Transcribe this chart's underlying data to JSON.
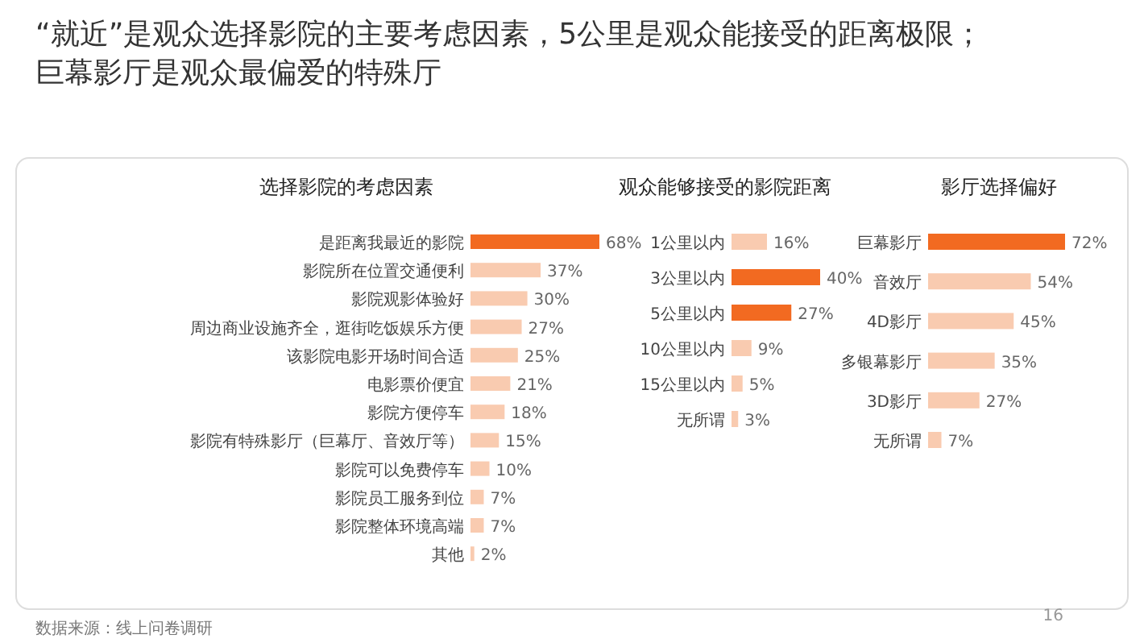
{
  "chart_data": [
    {
      "type": "bar",
      "orientation": "horizontal",
      "title": "“就近”是观众选择影院的主要考虑因素，5公里是观众能接受的距离极限；巨幕影厅是观众最偏爱的特殊厅",
      "subtitle": "选择影院的考虑因素",
      "categories": [
        "是距离我最近的影院",
        "影院所在位置交通便利",
        "影院观影体验好",
        "周边商业设施齐全，逛街吃饭娱乐方便",
        "该影院电影开场时间合适",
        "电影票价便宜",
        "影院方便停车",
        "影院有特殊影厅（巨幕厅、音效厅等）",
        "影院可以免费停车",
        "影院员工服务到位",
        "影院整体环境高端",
        "其他"
      ],
      "values": [
        68,
        37,
        30,
        27,
        25,
        21,
        18,
        15,
        10,
        7,
        7,
        2
      ],
      "value_labels": [
        "68%",
        "37%",
        "30%",
        "27%",
        "25%",
        "21%",
        "18%",
        "15%",
        "10%",
        "7%",
        "7%",
        "2%"
      ],
      "colors": [
        "#f26a21",
        "#f9cbb0",
        "#f9cbb0",
        "#f9cbb0",
        "#f9cbb0",
        "#f9cbb0",
        "#f9cbb0",
        "#f9cbb0",
        "#f9cbb0",
        "#f9cbb0",
        "#f9cbb0",
        "#f9cbb0"
      ],
      "annotations": [
        "数据来源：线上问卷调研",
        "16"
      ]
    },
    {
      "type": "bar",
      "orientation": "horizontal",
      "title": "观众能够接受的影院距离",
      "categories": [
        "1公里以内",
        "3公里以内",
        "5公里以内",
        "10公里以内",
        "15公里以内",
        "无所谓"
      ],
      "values": [
        16,
        40,
        27,
        9,
        5,
        3
      ],
      "value_labels": [
        "16%",
        "40%",
        "27%",
        "9%",
        "5%",
        "3%"
      ],
      "colors": [
        "#f9cbb0",
        "#f26a21",
        "#f26a21",
        "#f9cbb0",
        "#f9cbb0",
        "#f9cbb0"
      ]
    },
    {
      "type": "bar",
      "orientation": "horizontal",
      "title": "影厅选择偏好",
      "categories": [
        "巨幕影厅",
        "音效厅",
        "4D影厅",
        "多银幕影厅",
        "3D影厅",
        "无所谓"
      ],
      "values": [
        72,
        54,
        45,
        35,
        27,
        7
      ],
      "value_labels": [
        "72%",
        "54%",
        "45%",
        "35%",
        "27%",
        "7%"
      ],
      "colors": [
        "#f26a21",
        "#f9cbb0",
        "#f9cbb0",
        "#f9cbb0",
        "#f9cbb0",
        "#f9cbb0"
      ]
    }
  ]
}
